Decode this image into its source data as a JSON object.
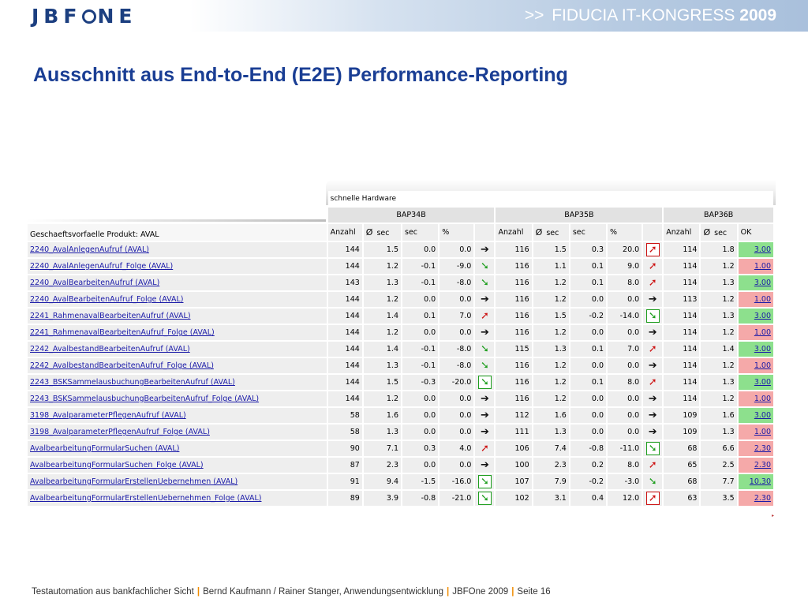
{
  "header": {
    "logo_text_1": "JBF",
    "logo_text_2": "NE",
    "congress_arrows": ">>",
    "congress_name": "FIDUCIA IT-KONGRESS",
    "congress_year": "2009"
  },
  "title": "Ausschnitt aus End-to-End (E2E) Performance-Reporting",
  "report": {
    "hardware_label": "schnelle Hardware",
    "groups": [
      "BAP34B",
      "BAP35B",
      "BAP36B"
    ],
    "row_label_header": "Geschaeftsvorfaelle Produkt: AVAL",
    "col_anzahl": "Anzahl",
    "col_avg_symbol": "Ø",
    "col_sec": "sec",
    "col_pct": "%",
    "col_ok": "OK",
    "rows": [
      {
        "name": "2240_AvalAnlegenAufruf (AVAL)",
        "b34": [
          "144",
          "1.5",
          "0.0",
          "0.0"
        ],
        "a34": "right",
        "b35": [
          "116",
          "1.5",
          "0.3",
          "20.0"
        ],
        "a35": "up-box",
        "b36": [
          "114",
          "1.8"
        ],
        "ok": "3.00",
        "ok_status": "good"
      },
      {
        "name": "2240_AvalAnlegenAufruf_Folge (AVAL)",
        "b34": [
          "144",
          "1.2",
          "-0.1",
          "-9.0"
        ],
        "a34": "down",
        "b35": [
          "116",
          "1.1",
          "0.1",
          "9.0"
        ],
        "a35": "up",
        "b36": [
          "114",
          "1.2"
        ],
        "ok": "1.00",
        "ok_status": "bad"
      },
      {
        "name": "2240_AvalBearbeitenAufruf (AVAL)",
        "b34": [
          "143",
          "1.3",
          "-0.1",
          "-8.0"
        ],
        "a34": "down",
        "b35": [
          "116",
          "1.2",
          "0.1",
          "8.0"
        ],
        "a35": "up",
        "b36": [
          "114",
          "1.3"
        ],
        "ok": "3.00",
        "ok_status": "good"
      },
      {
        "name": "2240_AvalBearbeitenAufruf_Folge (AVAL)",
        "b34": [
          "144",
          "1.2",
          "0.0",
          "0.0"
        ],
        "a34": "right",
        "b35": [
          "116",
          "1.2",
          "0.0",
          "0.0"
        ],
        "a35": "right",
        "b36": [
          "113",
          "1.2"
        ],
        "ok": "1.00",
        "ok_status": "bad"
      },
      {
        "name": "2241_RahmenavalBearbeitenAufruf (AVAL)",
        "b34": [
          "144",
          "1.4",
          "0.1",
          "7.0"
        ],
        "a34": "up",
        "b35": [
          "116",
          "1.5",
          "-0.2",
          "-14.0"
        ],
        "a35": "down-box",
        "b36": [
          "114",
          "1.3"
        ],
        "ok": "3.00",
        "ok_status": "good"
      },
      {
        "name": "2241_RahmenavalBearbeitenAufruf_Folge (AVAL)",
        "b34": [
          "144",
          "1.2",
          "0.0",
          "0.0"
        ],
        "a34": "right",
        "b35": [
          "116",
          "1.2",
          "0.0",
          "0.0"
        ],
        "a35": "right",
        "b36": [
          "114",
          "1.2"
        ],
        "ok": "1.00",
        "ok_status": "bad"
      },
      {
        "name": "2242_AvalbestandBearbeitenAufruf (AVAL)",
        "b34": [
          "144",
          "1.4",
          "-0.1",
          "-8.0"
        ],
        "a34": "down",
        "b35": [
          "115",
          "1.3",
          "0.1",
          "7.0"
        ],
        "a35": "up",
        "b36": [
          "114",
          "1.4"
        ],
        "ok": "3.00",
        "ok_status": "good"
      },
      {
        "name": "2242_AvalbestandBearbeitenAufruf_Folge (AVAL)",
        "b34": [
          "144",
          "1.3",
          "-0.1",
          "-8.0"
        ],
        "a34": "down",
        "b35": [
          "116",
          "1.2",
          "0.0",
          "0.0"
        ],
        "a35": "right",
        "b36": [
          "114",
          "1.2"
        ],
        "ok": "1.00",
        "ok_status": "bad"
      },
      {
        "name": "2243_BSKSammelausbuchungBearbeitenAufruf (AVAL)",
        "b34": [
          "144",
          "1.5",
          "-0.3",
          "-20.0"
        ],
        "a34": "down-box",
        "b35": [
          "116",
          "1.2",
          "0.1",
          "8.0"
        ],
        "a35": "up",
        "b36": [
          "114",
          "1.3"
        ],
        "ok": "3.00",
        "ok_status": "good"
      },
      {
        "name": "2243_BSKSammelausbuchungBearbeitenAufruf_Folge (AVAL)",
        "b34": [
          "144",
          "1.2",
          "0.0",
          "0.0"
        ],
        "a34": "right",
        "b35": [
          "116",
          "1.2",
          "0.0",
          "0.0"
        ],
        "a35": "right",
        "b36": [
          "114",
          "1.2"
        ],
        "ok": "1.00",
        "ok_status": "bad"
      },
      {
        "name": "3198_AvalparameterPflegenAufruf (AVAL)",
        "b34": [
          "58",
          "1.6",
          "0.0",
          "0.0"
        ],
        "a34": "right",
        "b35": [
          "112",
          "1.6",
          "0.0",
          "0.0"
        ],
        "a35": "right",
        "b36": [
          "109",
          "1.6"
        ],
        "ok": "3.00",
        "ok_status": "good"
      },
      {
        "name": "3198_AvalparameterPflegenAufruf_Folge (AVAL)",
        "b34": [
          "58",
          "1.3",
          "0.0",
          "0.0"
        ],
        "a34": "right",
        "b35": [
          "111",
          "1.3",
          "0.0",
          "0.0"
        ],
        "a35": "right",
        "b36": [
          "109",
          "1.3"
        ],
        "ok": "1.00",
        "ok_status": "bad"
      },
      {
        "name": "AvalbearbeitungFormularSuchen (AVAL)",
        "b34": [
          "90",
          "7.1",
          "0.3",
          "4.0"
        ],
        "a34": "up",
        "b35": [
          "106",
          "7.4",
          "-0.8",
          "-11.0"
        ],
        "a35": "down-box",
        "b36": [
          "68",
          "6.6"
        ],
        "ok": "2.30",
        "ok_status": "bad"
      },
      {
        "name": "AvalbearbeitungFormularSuchen_Folge (AVAL)",
        "b34": [
          "87",
          "2.3",
          "0.0",
          "0.0"
        ],
        "a34": "right",
        "b35": [
          "100",
          "2.3",
          "0.2",
          "8.0"
        ],
        "a35": "up",
        "b36": [
          "65",
          "2.5"
        ],
        "ok": "2.30",
        "ok_status": "bad"
      },
      {
        "name": "AvalbearbeitungFormularErstellenUebernehmen (AVAL)",
        "b34": [
          "91",
          "9.4",
          "-1.5",
          "-16.0"
        ],
        "a34": "down-box",
        "b35": [
          "107",
          "7.9",
          "-0.2",
          "-3.0"
        ],
        "a35": "down",
        "b36": [
          "68",
          "7.7"
        ],
        "ok": "10.30",
        "ok_status": "good"
      },
      {
        "name": "AvalbearbeitungFormularErstellenUebernehmen_Folge (AVAL)",
        "b34": [
          "89",
          "3.9",
          "-0.8",
          "-21.0"
        ],
        "a34": "down-box",
        "b35": [
          "102",
          "3.1",
          "0.4",
          "12.0"
        ],
        "a35": "up-box",
        "b36": [
          "63",
          "3.5"
        ],
        "ok": "2.30",
        "ok_status": "bad"
      }
    ]
  },
  "footer": {
    "part1": "Testautomation aus bankfachlicher Sicht",
    "part2": "Bernd Kaufmann / Rainer Stanger,  Anwendungsentwicklung",
    "part3": "JBFOne 2009",
    "part4": "Seite 16",
    "separator": "|"
  }
}
